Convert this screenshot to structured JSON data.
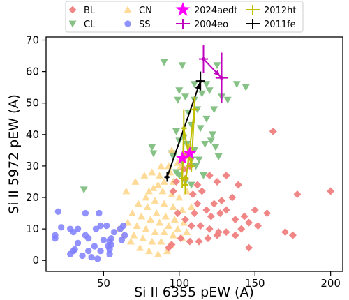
{
  "chart_data": {
    "type": "scatter",
    "xlabel": "Si II 6355 pEW (A)",
    "ylabel": "Si II 5972 pEW (A)",
    "xlim": [
      12,
      208
    ],
    "ylim": [
      -3.5,
      71
    ],
    "x_ticks": [
      50,
      100,
      150,
      200
    ],
    "y_ticks": [
      0,
      10,
      20,
      30,
      40,
      50,
      60,
      70
    ],
    "grid": false,
    "legend_position": "top (above plot)",
    "legend": [
      {
        "label": "BL",
        "marker": "diamond",
        "color": "#f08080"
      },
      {
        "label": "CL",
        "marker": "triangle-down",
        "color": "#7fbf7f"
      },
      {
        "label": "CN",
        "marker": "triangle-up",
        "color": "#ffd27f"
      },
      {
        "label": "SS",
        "marker": "circle",
        "color": "#7f7fff"
      },
      {
        "label": "2024aedt",
        "marker": "star",
        "color": "#ff00ff"
      },
      {
        "label": "2004eo",
        "marker": "errorbar",
        "color": "#bf00bf"
      },
      {
        "label": "2012ht",
        "marker": "errorbar",
        "color": "#bfbf00"
      },
      {
        "label": "2011fe",
        "marker": "errorbar",
        "color": "#000000"
      }
    ],
    "background_series": [
      {
        "name": "CL",
        "marker": "triangle-down",
        "color": "#7fbf7f",
        "points": [
          [
            90,
            63
          ],
          [
            102,
            62
          ],
          [
            125,
            62
          ],
          [
            118,
            56
          ],
          [
            110,
            56
          ],
          [
            100,
            54
          ],
          [
            104,
            52
          ],
          [
            110,
            51
          ],
          [
            115,
            53
          ],
          [
            120,
            54
          ],
          [
            128,
            52
          ],
          [
            132,
            51
          ],
          [
            138,
            56
          ],
          [
            144,
            55
          ],
          [
            99,
            51
          ],
          [
            106,
            47
          ],
          [
            112,
            48
          ],
          [
            118,
            45
          ],
          [
            123,
            48
          ],
          [
            108,
            43
          ],
          [
            114,
            42
          ],
          [
            122,
            40
          ],
          [
            98,
            41
          ],
          [
            103,
            39
          ],
          [
            100,
            38
          ],
          [
            105,
            37
          ],
          [
            110,
            35
          ],
          [
            117,
            37
          ],
          [
            124,
            36
          ],
          [
            96,
            33
          ],
          [
            104,
            33
          ],
          [
            108,
            32
          ],
          [
            113,
            32
          ],
          [
            102,
            31
          ],
          [
            108,
            30
          ],
          [
            111,
            30
          ],
          [
            98,
            28
          ],
          [
            100,
            27
          ],
          [
            104,
            25
          ],
          [
            108,
            24
          ],
          [
            82,
            36
          ],
          [
            83,
            34
          ],
          [
            95,
            34
          ],
          [
            126,
            33
          ],
          [
            121,
            38
          ],
          [
            37,
            22.5
          ],
          [
            116,
            27
          ]
        ]
      },
      {
        "name": "BL",
        "marker": "diamond",
        "color": "#f08080",
        "points": [
          [
            162,
            41
          ],
          [
            200,
            22
          ],
          [
            178,
            21
          ],
          [
            170,
            9
          ],
          [
            175,
            8
          ],
          [
            150,
            16
          ],
          [
            158,
            15
          ],
          [
            152,
            11
          ],
          [
            146,
            12
          ],
          [
            141,
            10
          ],
          [
            131,
            27
          ],
          [
            139,
            24
          ],
          [
            135,
            20
          ],
          [
            128,
            19
          ],
          [
            123,
            18
          ],
          [
            131,
            16
          ],
          [
            137,
            13
          ],
          [
            143,
            14
          ],
          [
            127,
            15
          ],
          [
            121,
            14
          ],
          [
            115,
            22
          ],
          [
            109,
            21
          ],
          [
            104,
            26
          ],
          [
            98,
            25
          ],
          [
            96,
            22
          ],
          [
            112,
            24
          ],
          [
            107,
            30
          ],
          [
            104,
            33
          ],
          [
            103,
            29
          ],
          [
            120,
            27
          ],
          [
            125,
            25
          ],
          [
            112,
            18
          ],
          [
            118,
            16
          ],
          [
            110,
            15
          ],
          [
            104,
            13
          ],
          [
            108,
            11
          ],
          [
            114,
            11
          ],
          [
            120,
            10
          ],
          [
            126,
            9
          ],
          [
            131,
            9
          ],
          [
            125,
            8
          ],
          [
            119,
            7
          ],
          [
            113,
            6
          ],
          [
            107,
            6
          ],
          [
            101,
            7
          ],
          [
            95,
            5
          ],
          [
            93,
            4
          ],
          [
            99,
            15
          ],
          [
            137,
            8
          ],
          [
            146,
            4
          ]
        ]
      },
      {
        "name": "CN",
        "marker": "triangle-up",
        "color": "#ffd27f",
        "points": [
          [
            95,
            35
          ],
          [
            93,
            30
          ],
          [
            101,
            30
          ],
          [
            87,
            27
          ],
          [
            90,
            25
          ],
          [
            96,
            25
          ],
          [
            83,
            23
          ],
          [
            89,
            22
          ],
          [
            95,
            21
          ],
          [
            100,
            20
          ],
          [
            105,
            22
          ],
          [
            78,
            20
          ],
          [
            84,
            19
          ],
          [
            90,
            18
          ],
          [
            96,
            17
          ],
          [
            102,
            16
          ],
          [
            108,
            17
          ],
          [
            73,
            18
          ],
          [
            79,
            17
          ],
          [
            85,
            15
          ],
          [
            91,
            14
          ],
          [
            97,
            13
          ],
          [
            103,
            12
          ],
          [
            69,
            15
          ],
          [
            75,
            14
          ],
          [
            81,
            13
          ],
          [
            87,
            12
          ],
          [
            93,
            11
          ],
          [
            99,
            10
          ],
          [
            105,
            9
          ],
          [
            66,
            12
          ],
          [
            72,
            11
          ],
          [
            78,
            10
          ],
          [
            84,
            9
          ],
          [
            90,
            9
          ],
          [
            96,
            8
          ],
          [
            102,
            7
          ],
          [
            70,
            8
          ],
          [
            76,
            7
          ],
          [
            82,
            6
          ],
          [
            88,
            6
          ],
          [
            94,
            5
          ],
          [
            74,
            4
          ],
          [
            80,
            3
          ],
          [
            86,
            2
          ],
          [
            92,
            3
          ],
          [
            68,
            6
          ],
          [
            60,
            10
          ],
          [
            63,
            8
          ],
          [
            65,
            22
          ],
          [
            71,
            25
          ],
          [
            77,
            27
          ],
          [
            82,
            28
          ],
          [
            99,
            31
          ],
          [
            88,
            30
          ],
          [
            94,
            28
          ],
          [
            80,
            22
          ],
          [
            86,
            24
          ]
        ]
      },
      {
        "name": "SS",
        "marker": "circle",
        "color": "#7f7fff",
        "points": [
          [
            20,
            15.5
          ],
          [
            22,
            10.5
          ],
          [
            18,
            8
          ],
          [
            18,
            7
          ],
          [
            28,
            10
          ],
          [
            30,
            9
          ],
          [
            33,
            10
          ],
          [
            38,
            15
          ],
          [
            47,
            15
          ],
          [
            45,
            10
          ],
          [
            48,
            11
          ],
          [
            52,
            11
          ],
          [
            57,
            9
          ],
          [
            61,
            10
          ],
          [
            63,
            11
          ],
          [
            64,
            8
          ],
          [
            55,
            7
          ],
          [
            50,
            6.5
          ],
          [
            54,
            6
          ],
          [
            55,
            5
          ],
          [
            53,
            4.5
          ],
          [
            54,
            3.5
          ],
          [
            54,
            2
          ],
          [
            48,
            3
          ],
          [
            44,
            4.5
          ],
          [
            40,
            7
          ],
          [
            38,
            8
          ],
          [
            33,
            5.5
          ],
          [
            30,
            3
          ],
          [
            28,
            2
          ],
          [
            36,
            1.5
          ],
          [
            40,
            3
          ],
          [
            42,
            1
          ],
          [
            46,
            0.5
          ],
          [
            31,
            3.5
          ],
          [
            62,
            6.5
          ]
        ]
      }
    ],
    "evolution_series": [
      {
        "name": "2011fe",
        "color": "#000000",
        "points": [
          {
            "x": 92,
            "y": 26.5,
            "xerr": 2,
            "yerr": 1.5
          },
          {
            "x": 114,
            "y": 57,
            "xerr": 3,
            "yerr": 3
          }
        ]
      },
      {
        "name": "2004eo",
        "color": "#bf00bf",
        "points": [
          {
            "x": 116,
            "y": 64,
            "xerr": 3,
            "yerr": 4.5
          },
          {
            "x": 128,
            "y": 58,
            "xerr": 4,
            "yerr": 8
          }
        ]
      },
      {
        "name": "2012ht",
        "color": "#bfbf00",
        "points": [
          {
            "x": 102,
            "y": 26,
            "xerr": 2,
            "yerr": 3
          },
          {
            "x": 103,
            "y": 42,
            "xerr": 2,
            "yerr": 6
          },
          {
            "x": 106,
            "y": 34,
            "xerr": 2,
            "yerr": 3
          },
          {
            "x": 108,
            "y": 30,
            "xerr": 2,
            "yerr": 2
          },
          {
            "x": 110,
            "y": 48,
            "xerr": 2,
            "yerr": 4
          },
          {
            "x": 104,
            "y": 24,
            "xerr": 2,
            "yerr": 3
          }
        ]
      },
      {
        "name": "2024aedt",
        "color": "#ff00ff",
        "marker": "star",
        "points": [
          {
            "x": 102,
            "y": 32.5
          },
          {
            "x": 107,
            "y": 34
          }
        ]
      }
    ]
  }
}
